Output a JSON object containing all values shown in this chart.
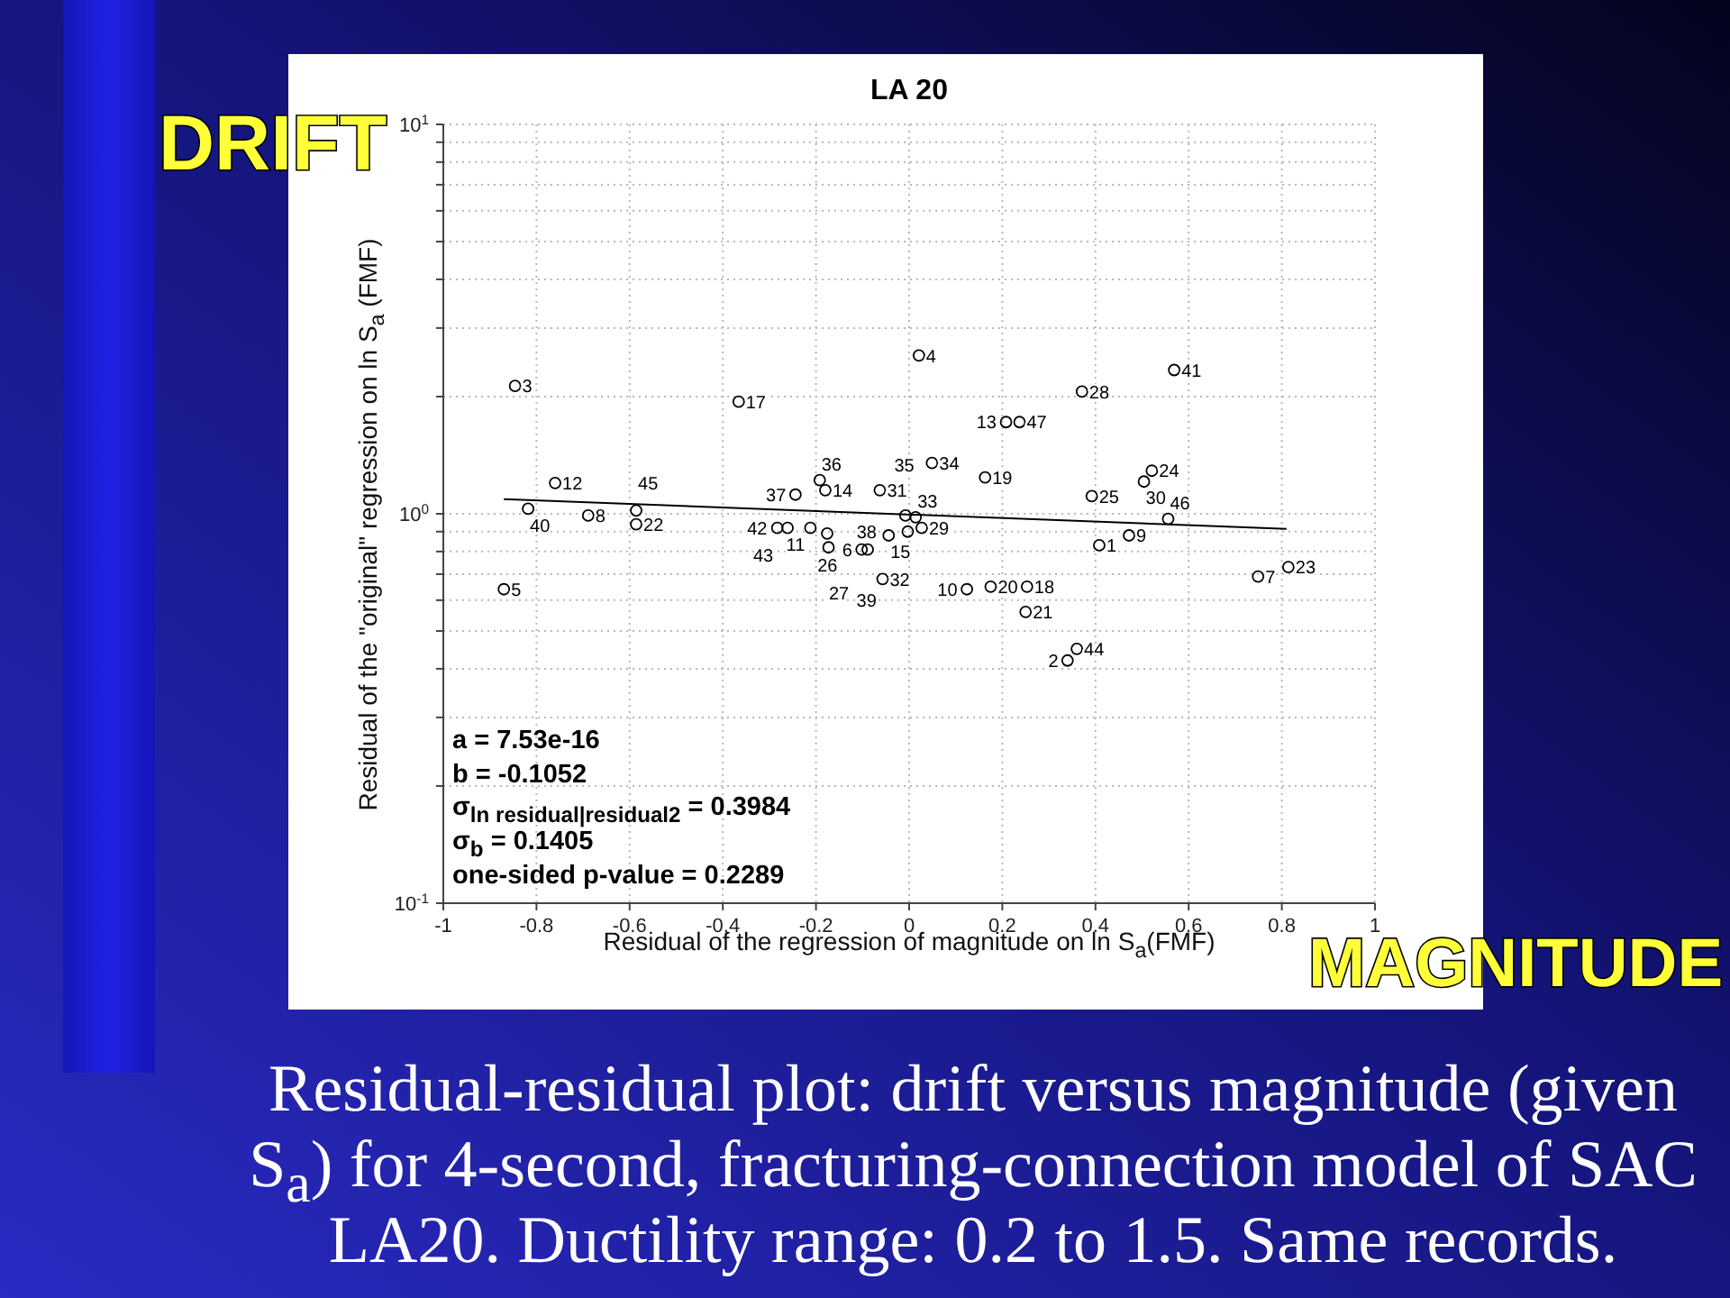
{
  "chart_data": {
    "type": "scatter",
    "title": "LA 20",
    "xlabel": "Residual of the regression of magnitude on ln S$_{a}$(FMF)",
    "ylabel": "Residual of the \"original\" regression on ln S$_{a}$ (FMF)",
    "xlim": [
      -1,
      1
    ],
    "xticks": [
      -1,
      -0.8,
      -0.6,
      -0.4,
      -0.2,
      0,
      0.2,
      0.4,
      0.6,
      0.8,
      1
    ],
    "ylim": [
      0.1,
      10
    ],
    "yticks": [
      {
        "value": 0.1,
        "label": "10$^{-1}$"
      },
      {
        "value": 0.2,
        "label": null
      },
      {
        "value": 0.3,
        "label": null
      },
      {
        "value": 0.4,
        "label": null
      },
      {
        "value": 0.5,
        "label": null
      },
      {
        "value": 0.6,
        "label": null
      },
      {
        "value": 0.7,
        "label": null
      },
      {
        "value": 0.8,
        "label": null
      },
      {
        "value": 0.9,
        "label": null
      },
      {
        "value": 1,
        "label": "10$^{0}$"
      },
      {
        "value": 2,
        "label": null
      },
      {
        "value": 3,
        "label": null
      },
      {
        "value": 4,
        "label": null
      },
      {
        "value": 5,
        "label": null
      },
      {
        "value": 6,
        "label": null
      },
      {
        "value": 7,
        "label": null
      },
      {
        "value": 8,
        "label": null
      },
      {
        "value": 9,
        "label": null
      },
      {
        "value": 10,
        "label": "10$^{1}$"
      }
    ],
    "log": "y",
    "grid": true,
    "series": [
      {
        "color": "#000000",
        "marker": "circle",
        "x": [
          0.408,
          0.34,
          -0.846,
          0.021,
          -0.87,
          -0.102,
          0.749,
          -0.689,
          0.472,
          0.124,
          -0.212,
          -0.76,
          0.208,
          -0.18,
          -0.044,
          -0.366,
          0.253,
          0.163,
          0.175,
          0.25,
          -0.586,
          0.814,
          0.521,
          0.392,
          -0.173,
          -0.176,
          0.371,
          0.027,
          0.504,
          -0.063,
          -0.057,
          0.014,
          0.049,
          -0.008,
          -0.192,
          -0.244,
          -0.003,
          -0.089,
          -0.818,
          0.569,
          -0.261,
          -0.283,
          0.36,
          -0.586,
          0.556,
          0.237
        ],
        "values": [
          0.83,
          0.42,
          2.13,
          2.55,
          0.64,
          0.81,
          0.69,
          0.99,
          0.88,
          0.64,
          0.92,
          1.2,
          1.72,
          1.15,
          0.88,
          1.94,
          0.65,
          1.24,
          0.65,
          0.56,
          0.94,
          0.73,
          1.29,
          1.11,
          0.82,
          0.89,
          2.06,
          0.92,
          1.21,
          1.15,
          0.68,
          0.98,
          1.35,
          0.99,
          1.22,
          1.12,
          0.9,
          0.81,
          1.03,
          2.34,
          0.92,
          0.92,
          0.45,
          1.02,
          0.97,
          1.72
        ]
      },
      {
        "type": "line",
        "color": "#000000",
        "x": [
          -0.87,
          0.81
        ],
        "values": [
          1.09,
          0.915
        ]
      }
    ],
    "annotations": [
      "DRIFT",
      "MAGNITUDE",
      "a = 7.53e-16",
      "b = -0.1052",
      "σ$_{ln residual|residual2}$ = 0.3984",
      "σ$_{b}$ = 0.1405",
      "one-sided p-value = 0.2289",
      "Residual-residual plot: drift versus magnitude (given S$_{a}$) for 4-second, fracturing-connection model of SAC LA20. Ductility range: 0.2 to 1.5. Same records.",
      {
        "text": "1",
        "x": 0.408,
        "y": 0.83
      },
      {
        "text": "2",
        "x": 0.34,
        "y": 0.42
      },
      {
        "text": "3",
        "x": -0.846,
        "y": 2.13
      },
      {
        "text": "4",
        "x": 0.021,
        "y": 2.55
      },
      {
        "text": "5",
        "x": -0.87,
        "y": 0.64
      },
      {
        "text": "6",
        "x": -0.102,
        "y": 0.81
      },
      {
        "text": "7",
        "x": 0.749,
        "y": 0.69
      },
      {
        "text": "8",
        "x": -0.689,
        "y": 0.99
      },
      {
        "text": "9",
        "x": 0.472,
        "y": 0.88
      },
      {
        "text": "10",
        "x": 0.124,
        "y": 0.64
      },
      {
        "text": "11",
        "x": -0.212,
        "y": 0.92
      },
      {
        "text": "12",
        "x": -0.76,
        "y": 1.2
      },
      {
        "text": "13",
        "x": 0.208,
        "y": 1.72
      },
      {
        "text": "14",
        "x": -0.18,
        "y": 1.15
      },
      {
        "text": "15",
        "x": -0.044,
        "y": 0.88
      },
      {
        "text": "17",
        "x": -0.366,
        "y": 1.94
      },
      {
        "text": "18",
        "x": 0.253,
        "y": 0.65
      },
      {
        "text": "19",
        "x": 0.163,
        "y": 1.24
      },
      {
        "text": "20",
        "x": 0.175,
        "y": 0.65
      },
      {
        "text": "21",
        "x": 0.25,
        "y": 0.56
      },
      {
        "text": "22",
        "x": -0.586,
        "y": 0.94
      },
      {
        "text": "23",
        "x": 0.814,
        "y": 0.73
      },
      {
        "text": "24",
        "x": 0.521,
        "y": 1.29
      },
      {
        "text": "25",
        "x": 0.392,
        "y": 1.11
      },
      {
        "text": "26",
        "x": -0.173,
        "y": 0.82
      },
      {
        "text": "27",
        "x": -0.176,
        "y": 0.89
      },
      {
        "text": "28",
        "x": 0.371,
        "y": 2.06
      },
      {
        "text": "29",
        "x": 0.027,
        "y": 0.92
      },
      {
        "text": "30",
        "x": 0.504,
        "y": 1.21
      },
      {
        "text": "31",
        "x": -0.063,
        "y": 1.15
      },
      {
        "text": "32",
        "x": -0.057,
        "y": 0.68
      },
      {
        "text": "33",
        "x": 0.014,
        "y": 0.98
      },
      {
        "text": "34",
        "x": 0.049,
        "y": 1.35
      },
      {
        "text": "35",
        "x": -0.008,
        "y": 0.99
      },
      {
        "text": "36",
        "x": -0.192,
        "y": 1.22
      },
      {
        "text": "37",
        "x": -0.244,
        "y": 1.12
      },
      {
        "text": "38",
        "x": -0.003,
        "y": 0.9
      },
      {
        "text": "39",
        "x": -0.089,
        "y": 0.81
      },
      {
        "text": "40",
        "x": -0.818,
        "y": 1.03
      },
      {
        "text": "41",
        "x": 0.569,
        "y": 2.34
      },
      {
        "text": "42",
        "x": -0.261,
        "y": 0.92
      },
      {
        "text": "43",
        "x": -0.283,
        "y": 0.92
      },
      {
        "text": "44",
        "x": 0.36,
        "y": 0.45
      },
      {
        "text": "45",
        "x": -0.586,
        "y": 1.02
      },
      {
        "text": "46",
        "x": 0.556,
        "y": 0.97
      },
      {
        "text": "47",
        "x": 0.237,
        "y": 1.72
      }
    ]
  }
}
